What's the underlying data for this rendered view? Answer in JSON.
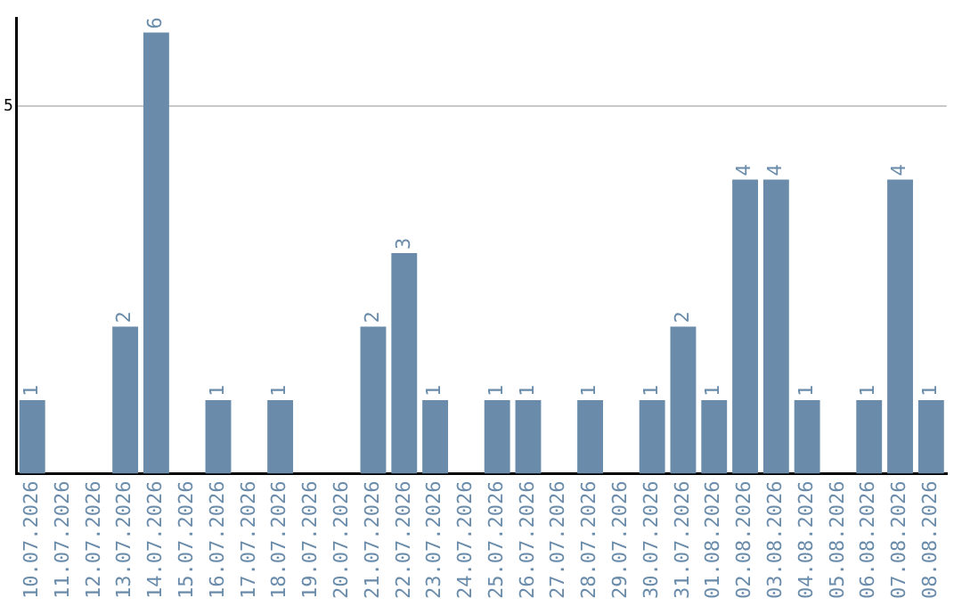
{
  "chart_data": {
    "type": "bar",
    "categories": [
      "10.07.2026",
      "11.07.2026",
      "12.07.2026",
      "13.07.2026",
      "14.07.2026",
      "15.07.2026",
      "16.07.2026",
      "17.07.2026",
      "18.07.2026",
      "19.07.2026",
      "20.07.2026",
      "21.07.2026",
      "22.07.2026",
      "23.07.2026",
      "24.07.2026",
      "25.07.2026",
      "26.07.2026",
      "27.07.2026",
      "28.07.2026",
      "29.07.2026",
      "30.07.2026",
      "31.07.2026",
      "01.08.2026",
      "02.08.2026",
      "03.08.2026",
      "04.08.2026",
      "05.08.2026",
      "06.08.2026",
      "07.08.2026",
      "08.08.2026"
    ],
    "values": [
      1,
      0,
      0,
      2,
      6,
      0,
      1,
      0,
      1,
      0,
      0,
      2,
      3,
      1,
      0,
      1,
      1,
      0,
      1,
      0,
      1,
      2,
      1,
      4,
      4,
      1,
      0,
      1,
      4,
      1
    ],
    "value_labels": [
      "1",
      null,
      null,
      "2",
      "6",
      null,
      "1",
      null,
      "1",
      null,
      null,
      "2",
      "3",
      "1",
      null,
      "1",
      "1",
      null,
      "1",
      null,
      "1",
      "2",
      "1",
      "4",
      "4",
      "1",
      null,
      "1",
      "4",
      "1"
    ],
    "color": "#6a8caa",
    "ylim": [
      0,
      6.2
    ],
    "yticks": [
      5
    ],
    "grid": "y",
    "legend": false
  }
}
